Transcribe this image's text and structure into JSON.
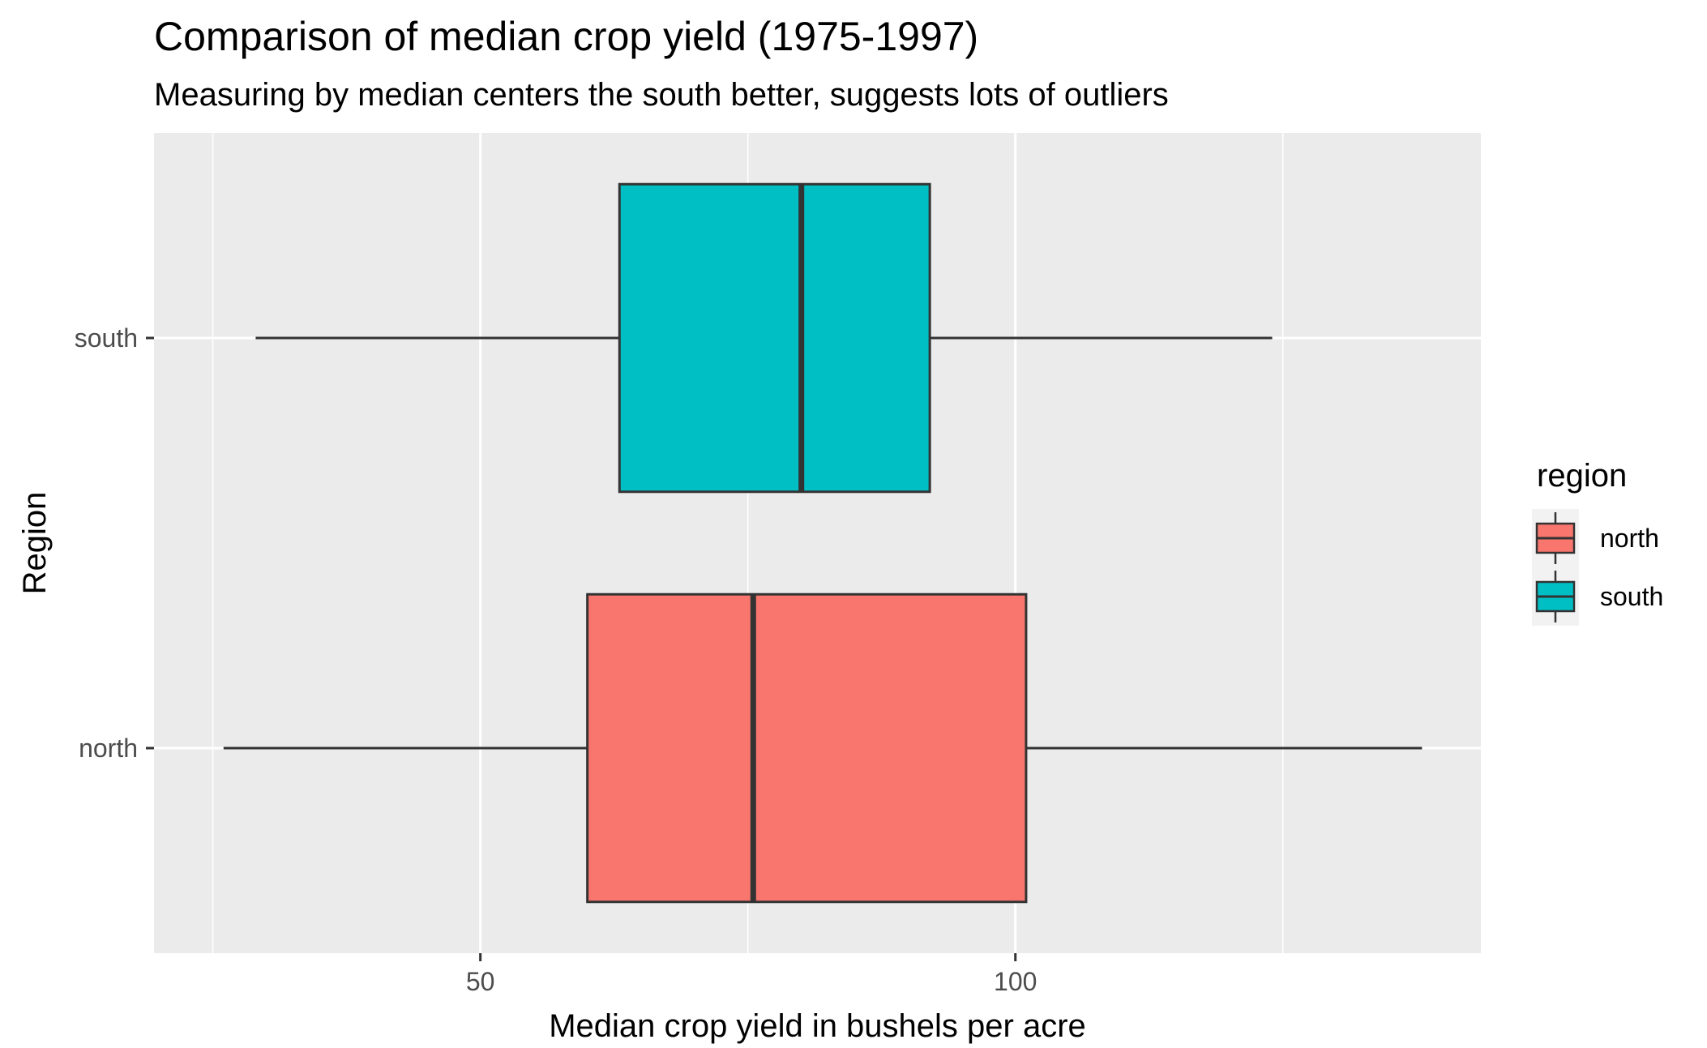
{
  "chart_data": {
    "type": "boxplot",
    "orientation": "horizontal",
    "title": "Comparison of median crop yield (1975-1997)",
    "subtitle": "Measuring by median centers the south better, suggests lots of outliers",
    "xlabel": "Median crop yield in bushels per acre",
    "ylabel": "Region",
    "xlim": [
      19.5,
      143.5
    ],
    "x_ticks": [
      50,
      100
    ],
    "categories": [
      "north",
      "south"
    ],
    "series": [
      {
        "name": "north",
        "min": 26,
        "q1": 60,
        "median": 75.5,
        "q3": 101,
        "max": 138,
        "color": "#F8766D"
      },
      {
        "name": "south",
        "min": 29,
        "q1": 63,
        "median": 80,
        "q3": 92,
        "max": 124,
        "color": "#00BFC4"
      }
    ],
    "grid": true,
    "panel_background": "#EBEBEB",
    "gridline_color": "#FFFFFF",
    "box_outline_color": "#333333",
    "legend": {
      "title": "region",
      "position": "right",
      "items": [
        {
          "label": "north",
          "color": "#F8766D"
        },
        {
          "label": "south",
          "color": "#00BFC4"
        }
      ]
    }
  }
}
